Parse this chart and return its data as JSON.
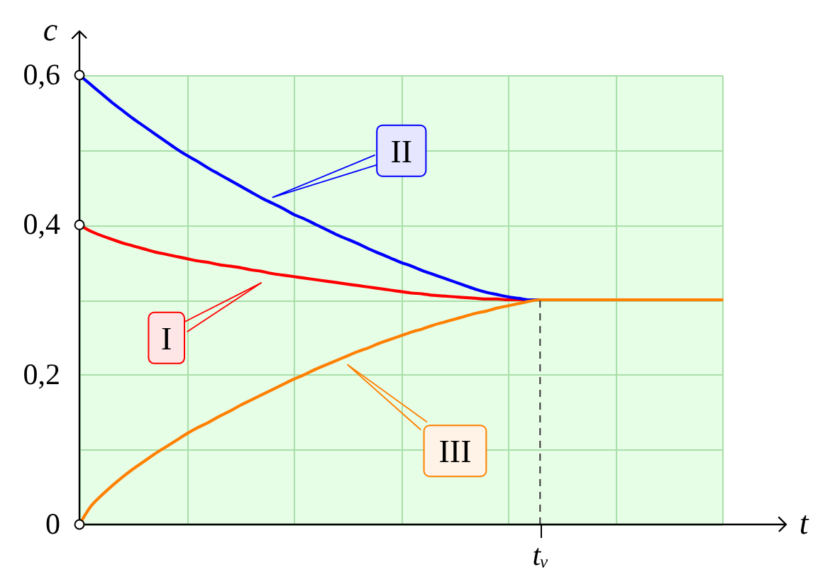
{
  "chart_data": {
    "type": "line",
    "xlabel": "t",
    "ylabel": "c",
    "categories": [
      null,
      null,
      null,
      null,
      null,
      null,
      null,
      null,
      null,
      null,
      null,
      null,
      null,
      null,
      null,
      null,
      null,
      null,
      null,
      null,
      null,
      null,
      null,
      null,
      null,
      null,
      null,
      null,
      null,
      null,
      null,
      null,
      null,
      null,
      null,
      null,
      null,
      null,
      null,
      null,
      null,
      null,
      null,
      "tᵥ",
      null,
      null,
      null,
      null,
      null,
      null,
      null,
      null,
      null,
      null,
      null,
      null,
      null,
      null,
      null,
      null,
      null
    ],
    "ylim": [
      0,
      0.6
    ],
    "yticks": [
      0,
      {
        "value": 0.1,
        "label": null
      },
      {
        "value": 0.2,
        "label": "0,2"
      },
      {
        "value": 0.3,
        "label": null
      },
      {
        "value": 0.4,
        "label": "0,4"
      },
      {
        "value": 0.5,
        "label": null
      },
      {
        "value": 0.6,
        "label": "0,6"
      }
    ],
    "grid": true,
    "series": [
      {
        "name": "I",
        "color": "#ff0000",
        "values": [
          0.4,
          0.392,
          0.386,
          0.381,
          0.376,
          0.372,
          0.368,
          0.364,
          0.361,
          0.358,
          0.355,
          0.352,
          0.35,
          0.347,
          0.345,
          0.343,
          0.34,
          0.338,
          0.335,
          0.333,
          0.331,
          0.329,
          0.327,
          0.325,
          0.323,
          0.321,
          0.319,
          0.317,
          0.315,
          0.313,
          0.311,
          0.309,
          0.308,
          0.306,
          0.305,
          0.304,
          0.303,
          0.302,
          0.301,
          0.301,
          0.3,
          0.3,
          0.3,
          0.3,
          null,
          null,
          null,
          null,
          null,
          null,
          null,
          null,
          null,
          null,
          null,
          null,
          null,
          null,
          null,
          null,
          null
        ]
      },
      {
        "name": "II",
        "color": "#0000ff",
        "values": [
          0.6,
          0.588,
          0.576,
          0.564,
          0.553,
          0.542,
          0.532,
          0.522,
          0.512,
          0.502,
          0.493,
          0.485,
          0.476,
          0.468,
          0.46,
          0.452,
          0.444,
          0.436,
          0.429,
          0.422,
          0.414,
          0.408,
          0.401,
          0.394,
          0.387,
          0.381,
          0.375,
          0.368,
          0.362,
          0.356,
          0.35,
          0.345,
          0.339,
          0.334,
          0.329,
          0.324,
          0.319,
          0.314,
          0.31,
          0.307,
          0.304,
          0.302,
          0.3,
          0.3,
          null,
          null,
          null,
          null,
          null,
          null,
          null,
          null,
          null,
          null,
          null,
          null,
          null,
          null,
          null,
          null,
          null
        ]
      },
      {
        "name": "III",
        "color": "#ff8000",
        "values": [
          0,
          0.023,
          0.038,
          0.051,
          0.063,
          0.074,
          0.084,
          0.094,
          0.103,
          0.112,
          0.121,
          0.129,
          0.136,
          0.144,
          0.151,
          0.159,
          0.166,
          0.173,
          0.18,
          0.187,
          0.194,
          0.2,
          0.207,
          0.213,
          0.219,
          0.225,
          0.231,
          0.236,
          0.242,
          0.247,
          0.252,
          0.257,
          0.261,
          0.266,
          0.27,
          0.274,
          0.278,
          0.282,
          0.285,
          0.289,
          0.292,
          0.295,
          0.298,
          0.3,
          0.3,
          0.3,
          0.3,
          0.3,
          0.3,
          0.3,
          0.3,
          0.3,
          0.3,
          0.3,
          0.3,
          0.3,
          0.3,
          0.3,
          0.3,
          0.3,
          0.3
        ]
      },
      {
        "type": "scatter",
        "marker": "circle",
        "color": "#000000",
        "values": [
          0.4,
          null,
          null,
          null,
          null,
          null,
          null,
          null,
          null,
          null,
          null,
          null,
          null,
          null,
          null,
          null,
          null,
          null,
          null,
          null,
          null,
          null,
          null,
          null,
          null,
          null,
          null,
          null,
          null,
          null,
          null,
          null,
          null,
          null,
          null,
          null,
          null,
          null,
          null,
          null,
          null,
          null,
          null,
          null,
          null,
          null,
          null,
          null,
          null,
          null,
          null,
          null,
          null,
          null,
          null,
          null,
          null,
          null,
          null,
          null,
          null
        ]
      },
      {
        "type": "scatter",
        "marker": "circle",
        "color": "#000000",
        "values": [
          0.6,
          null,
          null,
          null,
          null,
          null,
          null,
          null,
          null,
          null,
          null,
          null,
          null,
          null,
          null,
          null,
          null,
          null,
          null,
          null,
          null,
          null,
          null,
          null,
          null,
          null,
          null,
          null,
          null,
          null,
          null,
          null,
          null,
          null,
          null,
          null,
          null,
          null,
          null,
          null,
          null,
          null,
          null,
          null,
          null,
          null,
          null,
          null,
          null,
          null,
          null,
          null,
          null,
          null,
          null,
          null,
          null,
          null,
          null,
          null,
          null
        ]
      },
      {
        "type": "scatter",
        "marker": "circle",
        "color": "#000000",
        "values": [
          0,
          null,
          null,
          null,
          null,
          null,
          null,
          null,
          null,
          null,
          null,
          null,
          null,
          null,
          null,
          null,
          null,
          null,
          null,
          null,
          null,
          null,
          null,
          null,
          null,
          null,
          null,
          null,
          null,
          null,
          null,
          null,
          null,
          null,
          null,
          null,
          null,
          null,
          null,
          null,
          null,
          null,
          null,
          null,
          null,
          null,
          null,
          null,
          null,
          null,
          null,
          null,
          null,
          null,
          null,
          null,
          null,
          null,
          null,
          null,
          null
        ]
      }
    ],
    "ref_lines": [
      {
        "axis": "x",
        "value": "tᵥ",
        "line_style": "dashed",
        "color": "#333333"
      }
    ]
  }
}
